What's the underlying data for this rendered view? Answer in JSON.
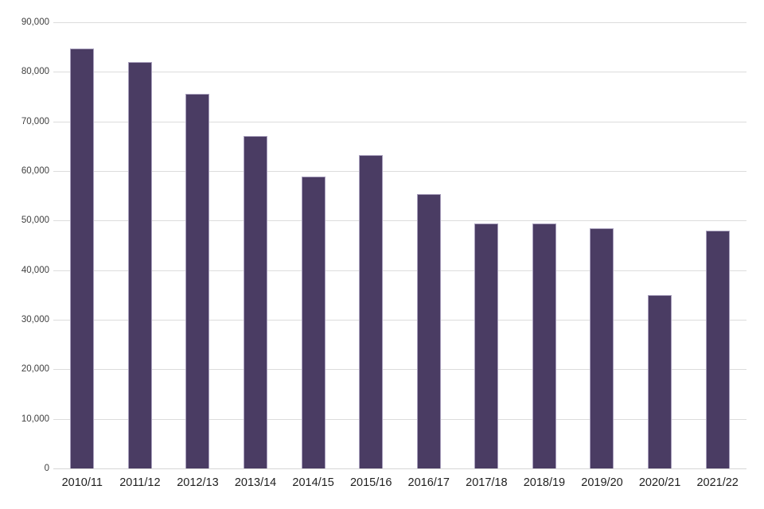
{
  "chart_data": {
    "type": "bar",
    "title": "",
    "xlabel": "",
    "ylabel": "",
    "categories": [
      "2010/11",
      "2011/12",
      "2012/13",
      "2013/14",
      "2014/15",
      "2015/16",
      "2016/17",
      "2017/18",
      "2018/19",
      "2019/20",
      "2020/21",
      "2021/22"
    ],
    "values": [
      84700,
      82000,
      75600,
      67100,
      58800,
      63200,
      55300,
      49400,
      49400,
      48500,
      35000,
      48000
    ],
    "ylim": [
      0,
      90000
    ],
    "ytick_interval": 10000,
    "ytick_labels": [
      "0",
      "10,000",
      "20,000",
      "30,000",
      "40,000",
      "50,000",
      "60,000",
      "70,000",
      "80,000",
      "90,000"
    ],
    "grid": true,
    "legend": false,
    "colors": {
      "bar_fill": "#4a3c63",
      "bar_border": "#a9a0bd",
      "gridline": "#dcdcdc",
      "axis_line": "#d6d6d6",
      "y_tick_text": "#404040",
      "x_tick_text": "#1f1f1f",
      "background": "#ffffff"
    }
  }
}
